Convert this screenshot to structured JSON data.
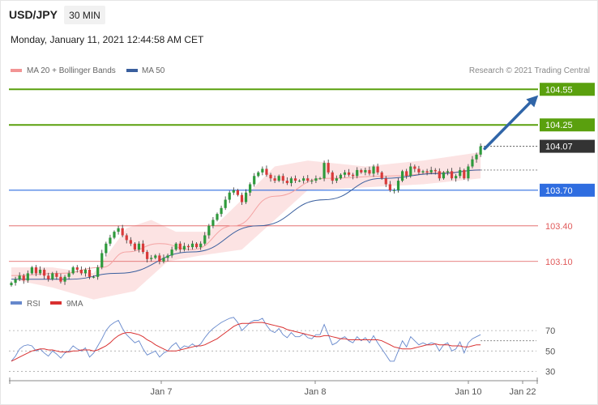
{
  "header": {
    "symbol": "USD/JPY",
    "interval": "30 MIN",
    "datetime": "Monday, January 11, 2021 12:44:58 AM CET",
    "credit": "Research © 2021 Trading Central"
  },
  "legend": {
    "ma20": "MA 20 + Bollinger Bands",
    "ma50": "MA 50",
    "rsi": "RSI",
    "ma9": "9MA"
  },
  "colors": {
    "resistance": "#5aa00e",
    "pivot": "#2f6de0",
    "support": "#e05a5a",
    "current": "#333333",
    "candle_up": "#2e9a3c",
    "candle_down": "#d93a3a",
    "band_fill": "#fbdada",
    "ma20": "#f4a3a3",
    "ma50": "#3a5f9e",
    "rsi": "#6688cc",
    "ma9": "#d93030",
    "arrow": "#3065a8"
  },
  "chart_data": [
    {
      "type": "candlestick",
      "name": "price",
      "y_range": [
        102.88,
        104.62
      ],
      "x_ticks": [
        "Jan 7",
        "Jan 8",
        "Jan 10",
        "Jan 22"
      ],
      "levels": [
        {
          "value": 104.55,
          "label": "104.55",
          "kind": "resistance"
        },
        {
          "value": 104.25,
          "label": "104.25",
          "kind": "resistance"
        },
        {
          "value": 104.07,
          "label": "104.07",
          "kind": "current"
        },
        {
          "value": 103.7,
          "label": "103.70",
          "kind": "pivot"
        },
        {
          "value": 103.4,
          "label": "103.40",
          "kind": "support"
        },
        {
          "value": 103.1,
          "label": "103.10",
          "kind": "support"
        }
      ],
      "close": [
        102.92,
        102.95,
        102.98,
        102.94,
        103.0,
        103.05,
        103.0,
        103.03,
        102.98,
        102.95,
        103.0,
        102.97,
        102.93,
        102.97,
        103.0,
        103.05,
        103.03,
        103.0,
        103.03,
        102.97,
        102.97,
        103.05,
        103.17,
        103.25,
        103.3,
        103.35,
        103.38,
        103.32,
        103.28,
        103.25,
        103.2,
        103.25,
        103.18,
        103.12,
        103.13,
        103.15,
        103.1,
        103.13,
        103.15,
        103.2,
        103.25,
        103.2,
        103.23,
        103.22,
        103.25,
        103.22,
        103.25,
        103.32,
        103.4,
        103.45,
        103.5,
        103.55,
        103.62,
        103.68,
        103.7,
        103.66,
        103.6,
        103.68,
        103.75,
        103.82,
        103.85,
        103.88,
        103.83,
        103.8,
        103.78,
        103.82,
        103.78,
        103.76,
        103.8,
        103.78,
        103.78,
        103.8,
        103.78,
        103.78,
        103.8,
        103.8,
        103.93,
        103.85,
        103.78,
        103.8,
        103.83,
        103.85,
        103.83,
        103.82,
        103.87,
        103.85,
        103.87,
        103.84,
        103.9,
        103.85,
        103.8,
        103.75,
        103.7,
        103.7,
        103.78,
        103.86,
        103.82,
        103.9,
        103.88,
        103.85,
        103.86,
        103.85,
        103.87,
        103.86,
        103.8,
        103.85,
        103.86,
        103.8,
        103.82,
        103.87,
        103.8,
        103.9,
        103.96,
        104.0,
        104.07
      ],
      "ma50_curve": [
        [
          0,
          102.95
        ],
        [
          14,
          102.95
        ],
        [
          26,
          103.0
        ],
        [
          44,
          103.18
        ],
        [
          60,
          103.4
        ],
        [
          76,
          103.62
        ],
        [
          90,
          103.8
        ],
        [
          104,
          103.84
        ],
        [
          114,
          103.87
        ]
      ],
      "ma20_curve": [
        [
          0,
          102.98
        ],
        [
          12,
          103.0
        ],
        [
          22,
          103.05
        ],
        [
          28,
          103.18
        ],
        [
          36,
          103.25
        ],
        [
          44,
          103.2
        ],
        [
          54,
          103.4
        ],
        [
          64,
          103.65
        ],
        [
          76,
          103.8
        ],
        [
          92,
          103.82
        ],
        [
          106,
          103.85
        ],
        [
          114,
          103.87
        ]
      ],
      "band_upper": [
        [
          0,
          103.05
        ],
        [
          10,
          103.05
        ],
        [
          20,
          103.0
        ],
        [
          28,
          103.38
        ],
        [
          34,
          103.45
        ],
        [
          40,
          103.35
        ],
        [
          48,
          103.35
        ],
        [
          56,
          103.62
        ],
        [
          64,
          103.9
        ],
        [
          72,
          103.95
        ],
        [
          86,
          103.9
        ],
        [
          100,
          103.95
        ],
        [
          114,
          104.02
        ]
      ],
      "band_lower": [
        [
          0,
          102.95
        ],
        [
          10,
          102.88
        ],
        [
          20,
          102.78
        ],
        [
          30,
          102.85
        ],
        [
          38,
          103.1
        ],
        [
          46,
          103.15
        ],
        [
          56,
          103.2
        ],
        [
          64,
          103.45
        ],
        [
          72,
          103.7
        ],
        [
          84,
          103.72
        ],
        [
          100,
          103.75
        ],
        [
          114,
          103.8
        ]
      ],
      "forecast_arrow": {
        "from": [
          115,
          104.05
        ],
        "to": [
          128,
          104.5
        ]
      }
    },
    {
      "type": "line",
      "name": "RSI",
      "y_range": [
        24,
        86
      ],
      "y_ticks": [
        70,
        50,
        30
      ],
      "series": [
        {
          "name": "RSI",
          "values": [
            40,
            45,
            52,
            55,
            56,
            55,
            50,
            52,
            48,
            45,
            50,
            47,
            43,
            48,
            50,
            55,
            52,
            50,
            53,
            44,
            48,
            55,
            62,
            70,
            75,
            78,
            80,
            72,
            66,
            62,
            58,
            60,
            52,
            46,
            48,
            50,
            44,
            48,
            50,
            55,
            58,
            52,
            55,
            54,
            57,
            54,
            57,
            63,
            68,
            72,
            75,
            78,
            80,
            82,
            83,
            78,
            70,
            74,
            78,
            80,
            80,
            82,
            75,
            70,
            68,
            72,
            66,
            63,
            68,
            64,
            64,
            67,
            63,
            62,
            66,
            66,
            76,
            66,
            56,
            58,
            62,
            64,
            60,
            58,
            64,
            60,
            63,
            58,
            65,
            58,
            52,
            46,
            40,
            40,
            50,
            60,
            54,
            64,
            60,
            56,
            58,
            56,
            58,
            57,
            50,
            56,
            58,
            50,
            52,
            59,
            48,
            58,
            62,
            64,
            66
          ]
        },
        {
          "name": "9MA",
          "values": [
            40,
            42,
            44,
            46,
            48,
            50,
            51,
            52,
            52,
            51,
            51,
            50,
            49,
            49,
            49,
            50,
            50,
            51,
            51,
            51,
            50,
            51,
            53,
            55,
            58,
            62,
            65,
            67,
            68,
            68,
            67,
            66,
            64,
            61,
            59,
            56,
            54,
            52,
            50,
            50,
            50,
            51,
            52,
            53,
            54,
            55,
            55,
            56,
            58,
            60,
            62,
            65,
            68,
            71,
            74,
            76,
            77,
            77,
            77,
            78,
            78,
            78,
            77,
            76,
            75,
            74,
            73,
            71,
            70,
            69,
            68,
            67,
            66,
            65,
            64,
            64,
            65,
            65,
            64,
            63,
            62,
            62,
            61,
            61,
            61,
            61,
            61,
            61,
            61,
            61,
            60,
            58,
            56,
            54,
            53,
            52,
            52,
            52,
            53,
            54,
            55,
            56,
            56,
            57,
            56,
            56,
            56,
            55,
            55,
            55,
            54,
            54,
            55,
            56,
            56
          ]
        }
      ],
      "reference_line": 60
    }
  ]
}
